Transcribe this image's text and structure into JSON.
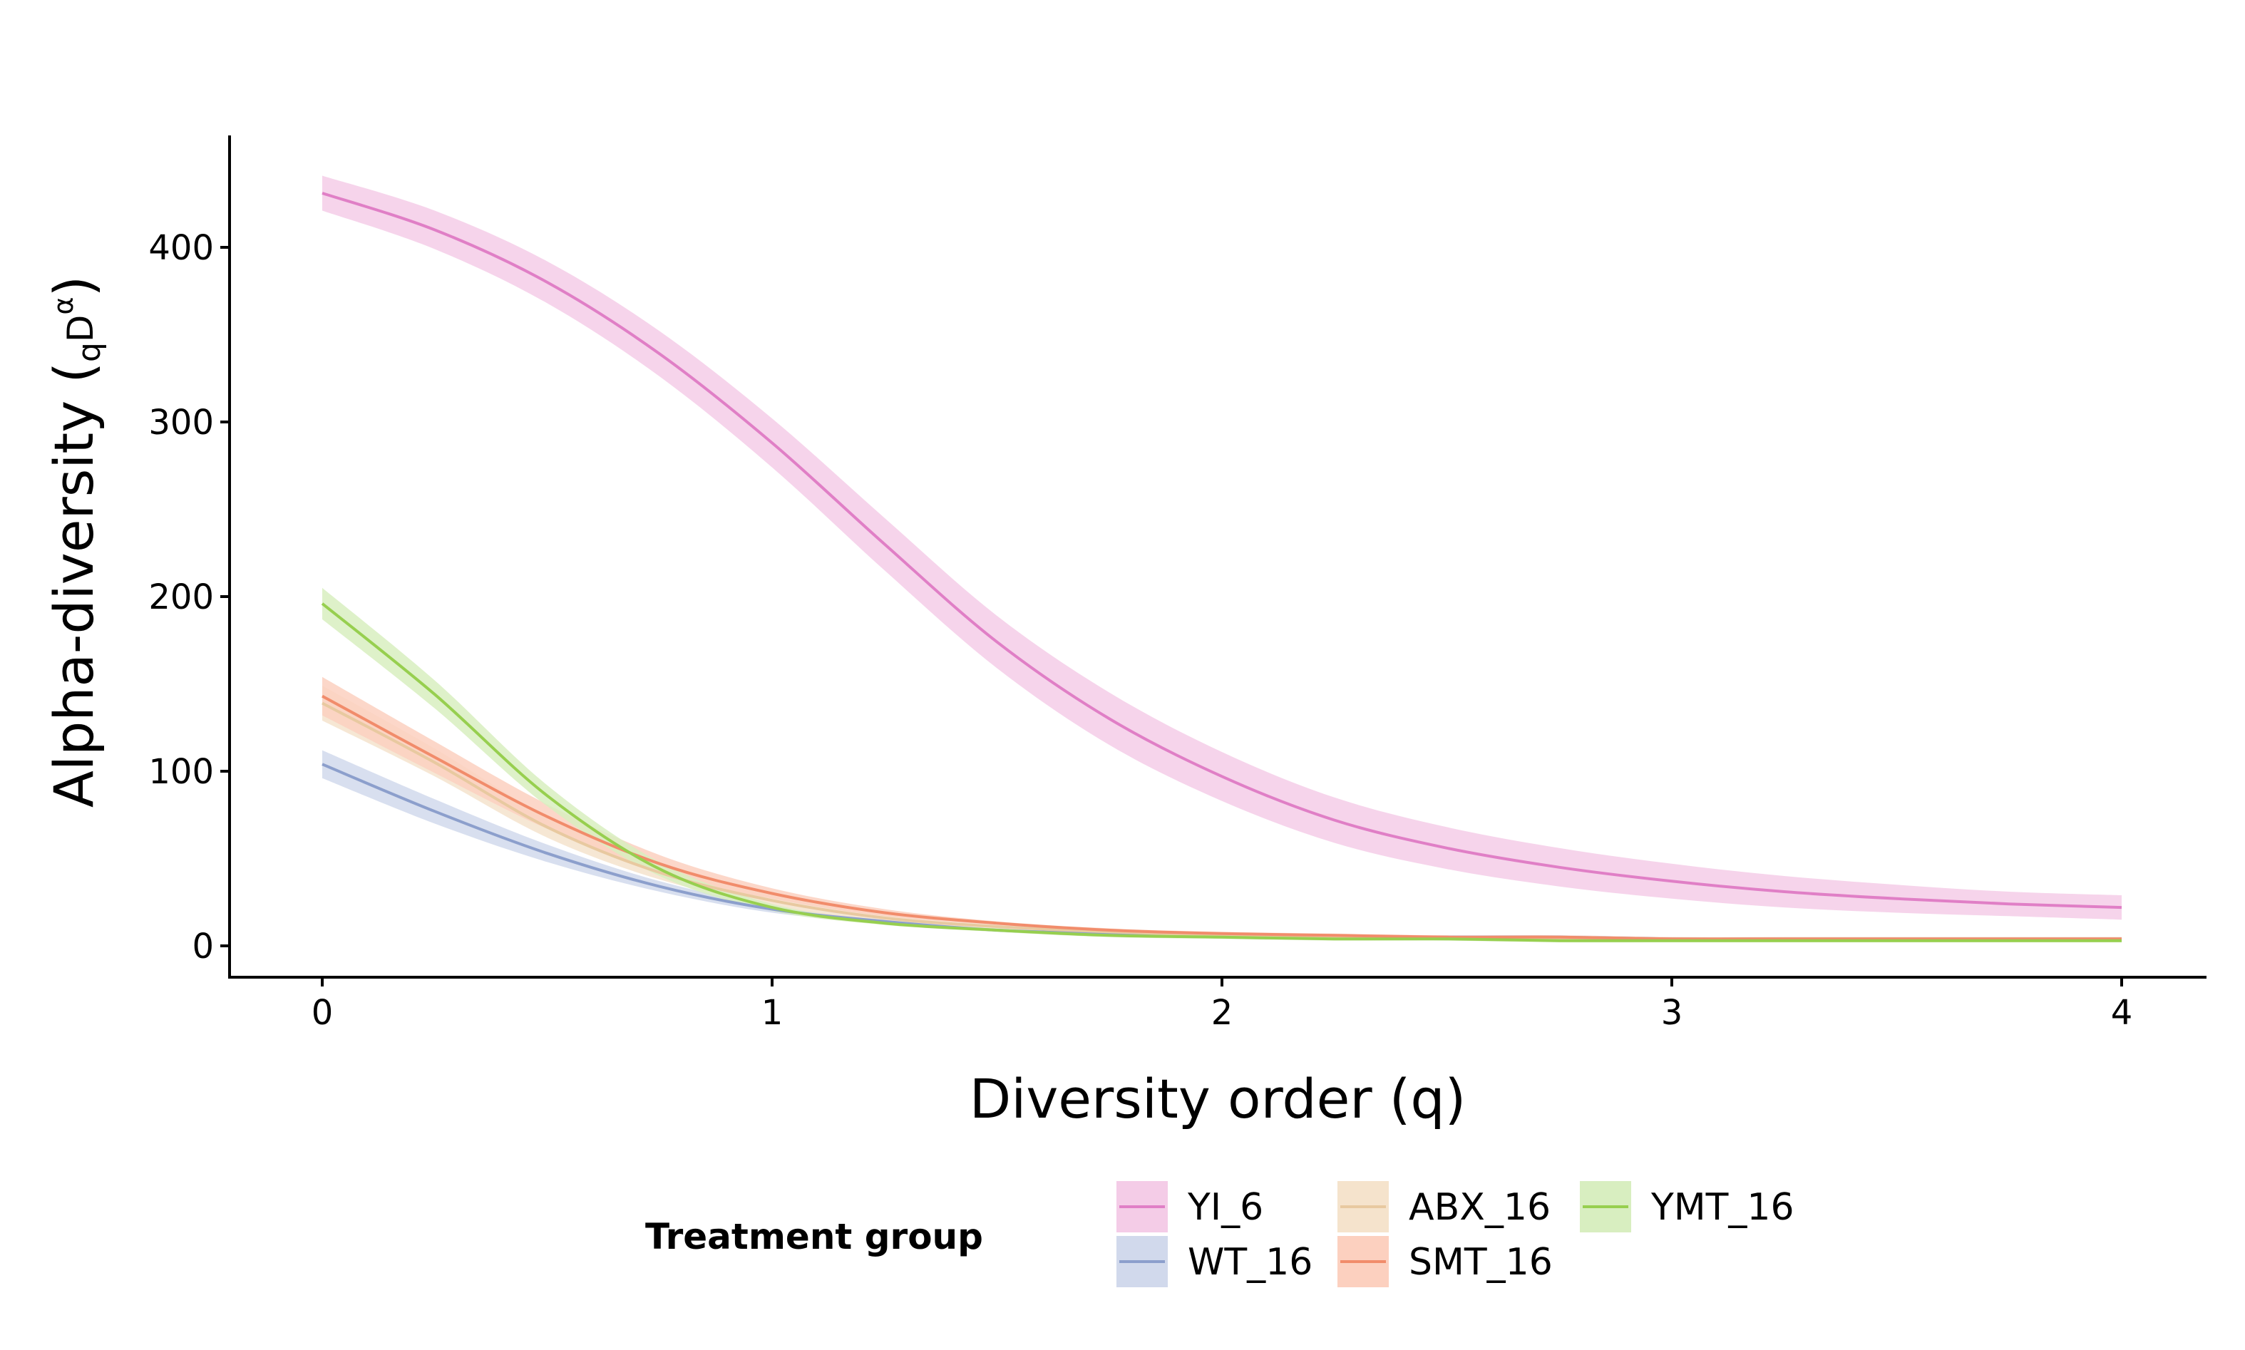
{
  "chart_data": {
    "type": "line",
    "title": "",
    "xlabel": "Diversity order (q)",
    "ylabel": {
      "main": "Alpha-diversity (",
      "sub": "q",
      "base": "D",
      "sup": "α",
      "close": ")"
    },
    "xlim": [
      -0.2,
      4.2
    ],
    "ylim": [
      -20,
      465
    ],
    "x_ticks": [
      0,
      1,
      2,
      3,
      4
    ],
    "x_tick_labels": [
      "0",
      "1",
      "2",
      "3",
      "4"
    ],
    "y_ticks": [
      0,
      100,
      200,
      300,
      400
    ],
    "y_tick_labels": [
      "0",
      "100",
      "200",
      "300",
      "400"
    ],
    "grid": false,
    "legend": {
      "title": "Treatment group",
      "position": "bottom",
      "columns": [
        [
          "YI_6",
          "WT_16"
        ],
        [
          "ABX_16",
          "SMT_16"
        ],
        [
          "YMT_16"
        ]
      ]
    },
    "x": [
      0,
      0.25,
      0.5,
      0.75,
      1,
      1.25,
      1.5,
      1.75,
      2,
      2.25,
      2.5,
      2.75,
      3,
      3.25,
      3.5,
      3.75,
      4
    ],
    "series": [
      {
        "name": "YI_6",
        "color": "#e07fc6",
        "band_color": "#f4cce7",
        "values": [
          431,
          410,
          380,
          339,
          288,
          230,
          174,
          130,
          97,
          72,
          56,
          45,
          37,
          31,
          27,
          24,
          22
        ],
        "band_halfwidth": [
          10,
          11,
          12,
          13,
          14,
          15,
          15,
          15,
          14,
          13,
          12,
          11,
          10,
          9,
          8,
          7,
          7
        ]
      },
      {
        "name": "WT_16",
        "color": "#8c9fcc",
        "band_color": "#d1d9ec",
        "values": [
          104,
          77,
          53,
          34,
          21,
          14,
          9,
          7,
          6,
          5,
          5,
          5,
          4,
          4,
          4,
          4,
          4
        ],
        "band_halfwidth": [
          8,
          7,
          5,
          3,
          2,
          1,
          1,
          1,
          1,
          1,
          1,
          1,
          1,
          1,
          1,
          1,
          1
        ]
      },
      {
        "name": "ABX_16",
        "color": "#e8c9a0",
        "band_color": "#f5e3cc",
        "values": [
          139,
          105,
          68,
          42,
          26,
          16,
          11,
          8,
          6,
          5,
          5,
          4,
          4,
          4,
          4,
          4,
          4
        ],
        "band_halfwidth": [
          10,
          8,
          6,
          4,
          3,
          2,
          1,
          1,
          1,
          1,
          1,
          1,
          1,
          1,
          1,
          1,
          1
        ]
      },
      {
        "name": "SMT_16",
        "color": "#f18c6b",
        "band_color": "#fcd0bf",
        "values": [
          143,
          108,
          74,
          47,
          30,
          19,
          13,
          9,
          7,
          6,
          5,
          5,
          4,
          4,
          4,
          4,
          4
        ],
        "band_halfwidth": [
          11,
          9,
          7,
          5,
          3,
          2,
          1,
          1,
          1,
          1,
          1,
          1,
          1,
          1,
          1,
          1,
          1
        ]
      },
      {
        "name": "YMT_16",
        "color": "#97cf4f",
        "band_color": "#d8eec0",
        "values": [
          196,
          144,
          86,
          44,
          22,
          13,
          9,
          6,
          5,
          4,
          4,
          3,
          3,
          3,
          3,
          3,
          3
        ],
        "band_halfwidth": [
          9,
          8,
          6,
          4,
          2,
          1,
          1,
          1,
          1,
          1,
          1,
          1,
          1,
          1,
          1,
          1,
          1
        ]
      }
    ]
  }
}
